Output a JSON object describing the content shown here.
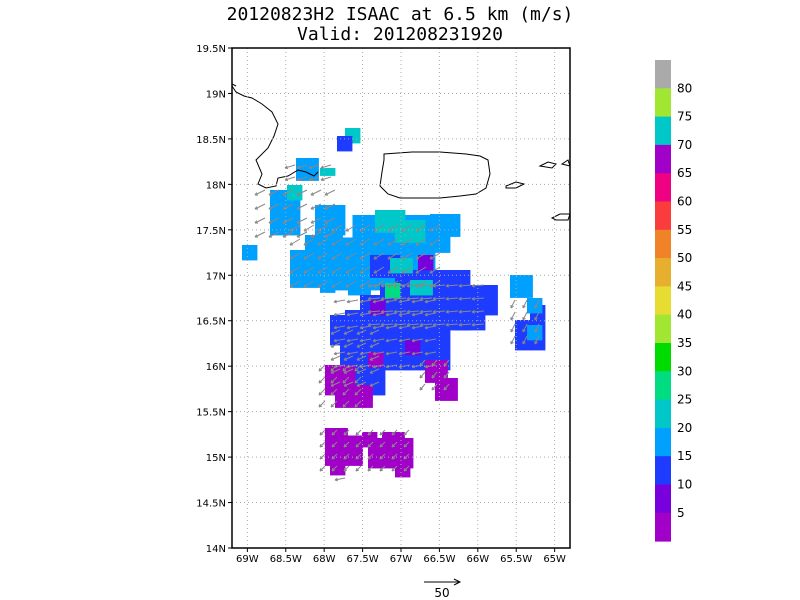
{
  "title": {
    "line1": "20120823H2 ISAAC at 6.5 km (m/s)",
    "line2": "Valid: 201208231920"
  },
  "map": {
    "lat_labels": [
      "19.5N",
      "19N",
      "18.5N",
      "18N",
      "17.5N",
      "17N",
      "16.5N",
      "16N",
      "15.5N",
      "15N",
      "14.5N",
      "14N"
    ],
    "lat_values": [
      19.5,
      19,
      18.5,
      18,
      17.5,
      17,
      16.5,
      16,
      15.5,
      15,
      14.5,
      14
    ],
    "lon_labels": [
      "69W",
      "68.5W",
      "68W",
      "67.5W",
      "67W",
      "66.5W",
      "66W",
      "65.5W",
      "65W"
    ],
    "lon_values": [
      -69,
      -68.5,
      -68,
      -67.5,
      -67,
      -66.5,
      -66,
      -65.5,
      -65
    ],
    "lat_range": [
      14,
      19.5
    ],
    "lon_range": [
      -69.2,
      -64.8
    ],
    "grid": true
  },
  "colorbar": {
    "labels": [
      "5",
      "10",
      "15",
      "20",
      "25",
      "30",
      "35",
      "40",
      "45",
      "50",
      "55",
      "60",
      "65",
      "70",
      "75",
      "80"
    ],
    "colors": [
      "#a000c8",
      "#7800dc",
      "#1e3cff",
      "#00a0ff",
      "#00c8c8",
      "#00dc82",
      "#00dc00",
      "#a0e632",
      "#e6dc32",
      "#e6af2d",
      "#f08228",
      "#fa3c3c",
      "#f00082",
      "#a000c8",
      "#00c8c8",
      "#a0e632",
      "#aaaaaa"
    ]
  },
  "vector_key": {
    "label": "50"
  }
}
